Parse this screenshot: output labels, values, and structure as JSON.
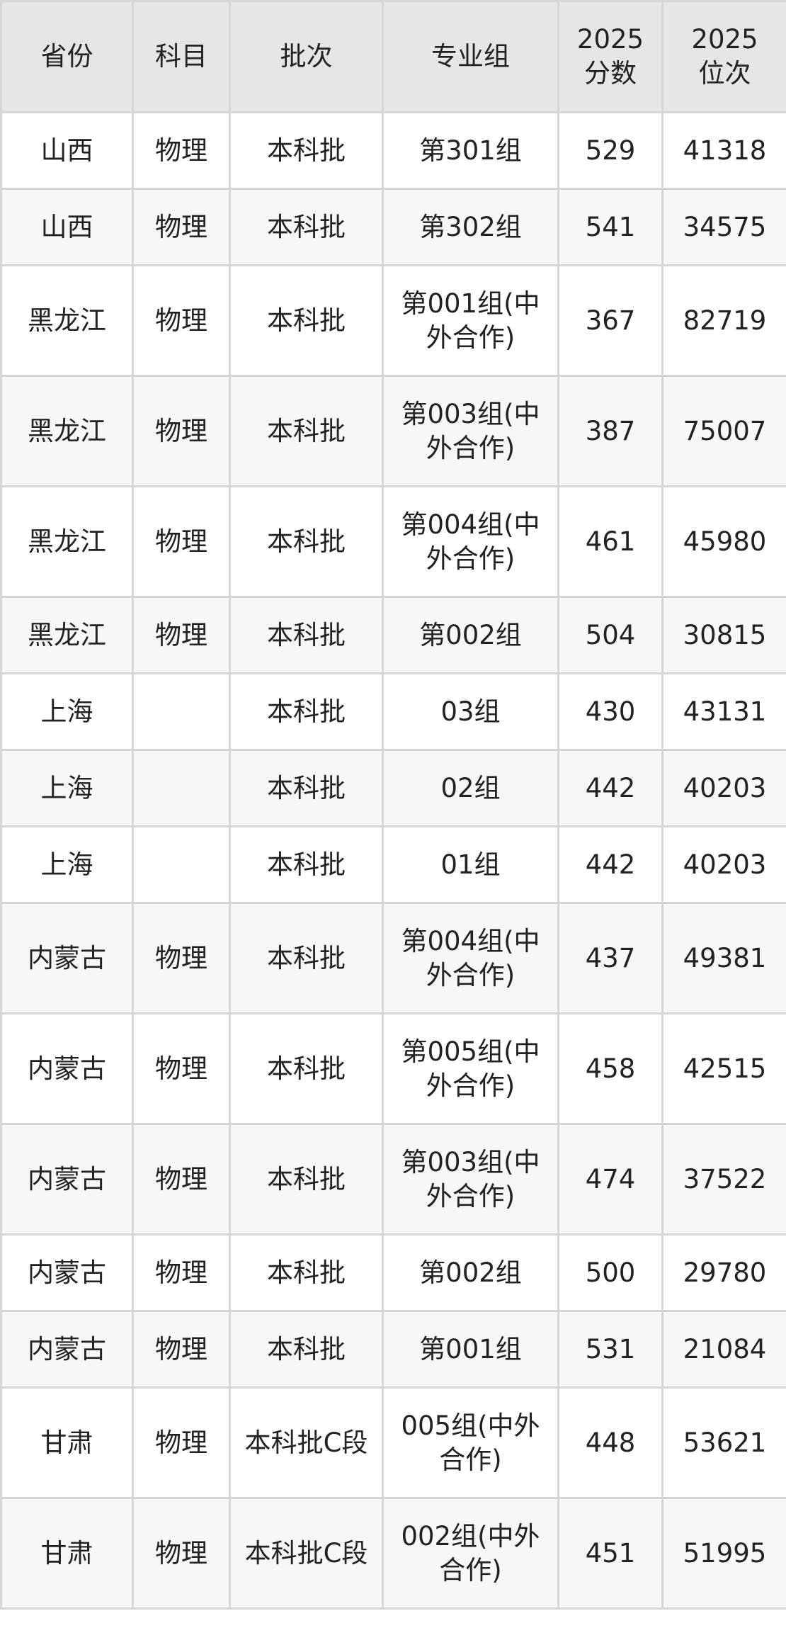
{
  "table": {
    "headers": [
      "省份",
      "科目",
      "批次",
      "专业组",
      "2025\n分数",
      "2025\n位次"
    ],
    "rows": [
      [
        "山西",
        "物理",
        "本科批",
        "第301组",
        "529",
        "41318"
      ],
      [
        "山西",
        "物理",
        "本科批",
        "第302组",
        "541",
        "34575"
      ],
      [
        "黑龙江",
        "物理",
        "本科批",
        "第001组(中外合作)",
        "367",
        "82719"
      ],
      [
        "黑龙江",
        "物理",
        "本科批",
        "第003组(中外合作)",
        "387",
        "75007"
      ],
      [
        "黑龙江",
        "物理",
        "本科批",
        "第004组(中外合作)",
        "461",
        "45980"
      ],
      [
        "黑龙江",
        "物理",
        "本科批",
        "第002组",
        "504",
        "30815"
      ],
      [
        "上海",
        "",
        "本科批",
        "03组",
        "430",
        "43131"
      ],
      [
        "上海",
        "",
        "本科批",
        "02组",
        "442",
        "40203"
      ],
      [
        "上海",
        "",
        "本科批",
        "01组",
        "442",
        "40203"
      ],
      [
        "内蒙古",
        "物理",
        "本科批",
        "第004组(中外合作)",
        "437",
        "49381"
      ],
      [
        "内蒙古",
        "物理",
        "本科批",
        "第005组(中外合作)",
        "458",
        "42515"
      ],
      [
        "内蒙古",
        "物理",
        "本科批",
        "第003组(中外合作)",
        "474",
        "37522"
      ],
      [
        "内蒙古",
        "物理",
        "本科批",
        "第002组",
        "500",
        "29780"
      ],
      [
        "内蒙古",
        "物理",
        "本科批",
        "第001组",
        "531",
        "21084"
      ],
      [
        "甘肃",
        "物理",
        "本科批C段",
        "005组(中外合作)",
        "448",
        "53621"
      ],
      [
        "甘肃",
        "物理",
        "本科批C段",
        "002组(中外合作)",
        "451",
        "51995"
      ]
    ]
  }
}
